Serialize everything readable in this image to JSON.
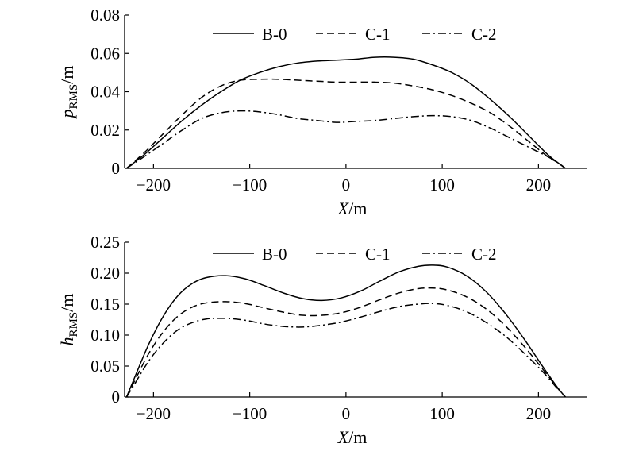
{
  "chart_data": [
    {
      "type": "line",
      "ylabel": {
        "main": "p",
        "sub": "RMS",
        "unit": "/m"
      },
      "xlabel": {
        "main": "X",
        "unit": "/m"
      },
      "xlim": [
        -230,
        250
      ],
      "ylim": [
        0,
        0.08
      ],
      "xticks": [
        -200,
        -100,
        0,
        100,
        200
      ],
      "xtick_labels": [
        "−200",
        "−100",
        "0",
        "100",
        "200"
      ],
      "yticks": [
        0,
        0.02,
        0.04,
        0.06,
        0.08
      ],
      "ytick_labels": [
        "0",
        "0.02",
        "0.04",
        "0.06",
        "0.08"
      ],
      "legend": "top-center",
      "series": [
        {
          "name": "B-0",
          "style": "solid",
          "x": [
            -228,
            -210,
            -190,
            -170,
            -150,
            -130,
            -110,
            -90,
            -70,
            -50,
            -30,
            -10,
            10,
            30,
            50,
            70,
            90,
            110,
            130,
            150,
            170,
            190,
            210,
            220,
            228
          ],
          "y": [
            0,
            0.007,
            0.016,
            0.025,
            0.033,
            0.04,
            0.046,
            0.05,
            0.053,
            0.055,
            0.056,
            0.0565,
            0.057,
            0.058,
            0.058,
            0.057,
            0.054,
            0.05,
            0.044,
            0.036,
            0.027,
            0.017,
            0.007,
            0.003,
            0
          ]
        },
        {
          "name": "C-1",
          "style": "dashed",
          "x": [
            -228,
            -210,
            -190,
            -170,
            -150,
            -130,
            -110,
            -90,
            -70,
            -50,
            -30,
            -10,
            10,
            30,
            50,
            70,
            90,
            110,
            130,
            150,
            170,
            190,
            210,
            220,
            228
          ],
          "y": [
            0,
            0.008,
            0.018,
            0.028,
            0.037,
            0.043,
            0.046,
            0.0465,
            0.0465,
            0.046,
            0.0455,
            0.045,
            0.045,
            0.045,
            0.0445,
            0.043,
            0.041,
            0.038,
            0.034,
            0.029,
            0.022,
            0.014,
            0.006,
            0.003,
            0
          ]
        },
        {
          "name": "C-2",
          "style": "dashdot",
          "x": [
            -228,
            -210,
            -190,
            -170,
            -150,
            -130,
            -110,
            -90,
            -70,
            -50,
            -30,
            -10,
            10,
            30,
            50,
            70,
            90,
            110,
            130,
            150,
            170,
            190,
            210,
            220,
            228
          ],
          "y": [
            0,
            0.006,
            0.013,
            0.02,
            0.026,
            0.029,
            0.03,
            0.0295,
            0.028,
            0.026,
            0.025,
            0.024,
            0.0245,
            0.025,
            0.026,
            0.027,
            0.0275,
            0.027,
            0.025,
            0.021,
            0.016,
            0.011,
            0.006,
            0.003,
            0
          ]
        }
      ]
    },
    {
      "type": "line",
      "ylabel": {
        "main": "h",
        "sub": "RMS",
        "unit": "/m"
      },
      "xlabel": {
        "main": "X",
        "unit": "/m"
      },
      "xlim": [
        -230,
        250
      ],
      "ylim": [
        0,
        0.25
      ],
      "xticks": [
        -200,
        -100,
        0,
        100,
        200
      ],
      "xtick_labels": [
        "−200",
        "−100",
        "0",
        "100",
        "200"
      ],
      "yticks": [
        0,
        0.05,
        0.1,
        0.15,
        0.2,
        0.25
      ],
      "ytick_labels": [
        "0",
        "0.05",
        "0.10",
        "0.15",
        "0.20",
        "0.25"
      ],
      "legend": "top-center",
      "series": [
        {
          "name": "B-0",
          "style": "solid",
          "x": [
            -228,
            -220,
            -205,
            -190,
            -175,
            -160,
            -145,
            -125,
            -105,
            -85,
            -65,
            -45,
            -25,
            -5,
            15,
            35,
            55,
            75,
            90,
            105,
            125,
            145,
            165,
            185,
            205,
            220,
            228
          ],
          "y": [
            0,
            0.03,
            0.085,
            0.13,
            0.163,
            0.183,
            0.193,
            0.196,
            0.191,
            0.18,
            0.168,
            0.159,
            0.156,
            0.16,
            0.171,
            0.187,
            0.202,
            0.211,
            0.213,
            0.21,
            0.196,
            0.171,
            0.136,
            0.094,
            0.048,
            0.015,
            0
          ]
        },
        {
          "name": "C-1",
          "style": "dashed",
          "x": [
            -228,
            -220,
            -205,
            -190,
            -175,
            -160,
            -145,
            -125,
            -105,
            -85,
            -65,
            -45,
            -25,
            -5,
            15,
            35,
            55,
            75,
            90,
            105,
            125,
            145,
            165,
            185,
            205,
            220,
            228
          ],
          "y": [
            0,
            0.025,
            0.07,
            0.105,
            0.13,
            0.145,
            0.152,
            0.154,
            0.151,
            0.144,
            0.137,
            0.132,
            0.132,
            0.136,
            0.145,
            0.157,
            0.168,
            0.175,
            0.176,
            0.173,
            0.162,
            0.143,
            0.116,
            0.082,
            0.044,
            0.014,
            0
          ]
        },
        {
          "name": "C-2",
          "style": "dashdot",
          "x": [
            -228,
            -220,
            -205,
            -190,
            -175,
            -160,
            -145,
            -125,
            -105,
            -85,
            -65,
            -45,
            -25,
            -5,
            15,
            35,
            55,
            75,
            90,
            105,
            125,
            145,
            165,
            185,
            205,
            220,
            228
          ],
          "y": [
            0,
            0.02,
            0.058,
            0.087,
            0.108,
            0.12,
            0.126,
            0.127,
            0.124,
            0.118,
            0.114,
            0.113,
            0.116,
            0.121,
            0.129,
            0.138,
            0.146,
            0.15,
            0.151,
            0.148,
            0.138,
            0.121,
            0.099,
            0.071,
            0.04,
            0.013,
            0
          ]
        }
      ]
    }
  ]
}
